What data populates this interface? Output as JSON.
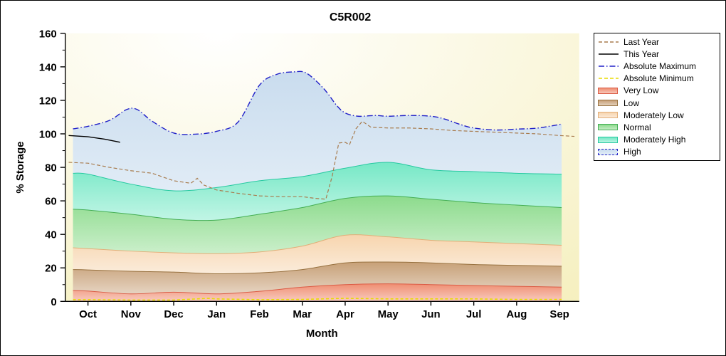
{
  "chart_data": {
    "type": "area",
    "title": "C5R002",
    "xlabel": "Month",
    "ylabel": "% Storage",
    "ylim": [
      0,
      160
    ],
    "yticks": [
      0,
      20,
      40,
      60,
      80,
      100,
      120,
      140,
      160
    ],
    "x_domain": [
      -0.53,
      11.46
    ],
    "grid": false,
    "months": [
      "Oct",
      "Nov",
      "Dec",
      "Jan",
      "Feb",
      "Mar",
      "Apr",
      "May",
      "Jun",
      "Jul",
      "Aug",
      "Sep"
    ],
    "band_order": [
      "very_low",
      "low",
      "moderately_low",
      "normal",
      "moderately_high"
    ],
    "bands": {
      "x": [
        -0.35,
        0,
        1,
        2,
        3,
        4,
        5,
        6,
        7,
        8,
        9,
        10,
        11.05
      ],
      "very_low_top": [
        6.5,
        6.2,
        4.5,
        5.5,
        4.5,
        6.0,
        8.5,
        10.0,
        10.5,
        10.0,
        9.5,
        9.0,
        8.5
      ],
      "low_top": [
        19.0,
        18.8,
        18.0,
        17.5,
        16.5,
        17.0,
        19.0,
        23.0,
        23.5,
        23.0,
        22.0,
        21.5,
        21.0
      ],
      "moderately_low_top": [
        32.0,
        31.5,
        30.0,
        29.0,
        28.5,
        29.5,
        33.0,
        39.5,
        38.5,
        36.5,
        35.5,
        34.5,
        33.5
      ],
      "normal_top": [
        55.0,
        54.5,
        52.0,
        49.0,
        48.5,
        52.0,
        56.0,
        61.5,
        63.0,
        61.0,
        59.0,
        57.5,
        56.0
      ],
      "moderately_high_top": [
        76.5,
        76.0,
        70.0,
        66.0,
        68.0,
        72.0,
        74.5,
        79.5,
        83.0,
        78.5,
        77.5,
        76.5,
        76.0
      ]
    },
    "absolute_maximum": {
      "x": [
        -0.35,
        0,
        0.5,
        0.9,
        1.15,
        1.5,
        2,
        2.5,
        3,
        3.5,
        4,
        4.4,
        4.8,
        5.1,
        5.5,
        5.8,
        6,
        6.3,
        6.7,
        7,
        7.5,
        8,
        8.3,
        8.7,
        9,
        9.5,
        10,
        10.5,
        11.05
      ],
      "y": [
        103,
        104.5,
        108,
        114.5,
        114.5,
        107.5,
        100.5,
        99.8,
        101.5,
        107,
        129,
        135.5,
        137,
        136.2,
        127,
        117,
        112.5,
        110.5,
        111,
        110.5,
        111,
        110.5,
        109,
        105.5,
        103.5,
        102.3,
        102.8,
        103.5,
        105.8
      ]
    },
    "absolute_minimum": {
      "x": [
        -0.35,
        0,
        1,
        2,
        2.8,
        3,
        4,
        5,
        6,
        7,
        8,
        9,
        10,
        11.05
      ],
      "y": [
        1,
        1,
        0.8,
        0.8,
        1.8,
        1.5,
        1,
        1.2,
        1.8,
        1.5,
        1.5,
        1.5,
        1.2,
        1.2
      ]
    },
    "last_year": {
      "x": [
        -0.45,
        0,
        0.5,
        1,
        1.5,
        2,
        2.4,
        2.55,
        2.7,
        3,
        3.5,
        4,
        4.5,
        5,
        5.3,
        5.55,
        5.7,
        5.85,
        6.0,
        6.1,
        6.25,
        6.4,
        6.6,
        7,
        7.5,
        8,
        8.5,
        9,
        9.5,
        10,
        10.5,
        11,
        11.35
      ],
      "y": [
        83,
        82.5,
        80,
        78,
        76.5,
        72,
        70.5,
        73.5,
        69.5,
        66.5,
        64.5,
        63,
        62.5,
        62.5,
        61.5,
        61,
        75,
        94.5,
        95,
        93.5,
        103,
        107.5,
        104,
        103.5,
        103.5,
        103,
        102,
        101.5,
        101,
        100.5,
        100,
        99,
        98.5
      ]
    },
    "this_year": {
      "x": [
        -0.45,
        0,
        0.4,
        0.75
      ],
      "y": [
        99,
        98.3,
        96.8,
        95
      ]
    },
    "colors": {
      "plot_bg_center": "#FFFFFF",
      "plot_bg_edge": "#F5EFBD",
      "very_low": {
        "fill": "#EF8E72",
        "line": "#DB5B45"
      },
      "low": {
        "fill": "#C7A077",
        "line": "#97713F"
      },
      "moderately_low": {
        "fill": "#F7D5AE",
        "line": "#E2AE78"
      },
      "normal": {
        "fill": "#8CDB8C",
        "line": "#44AE54"
      },
      "moderately_high": {
        "fill": "#76E8C6",
        "line": "#25C9A0"
      },
      "high": {
        "fill": "#C9DCEE",
        "line": "#2020C8"
      },
      "last_year": "#A87C4F",
      "this_year": "#000000",
      "abs_max": "#2020C8",
      "abs_min": "#E8DC00",
      "axis": "#000000"
    },
    "legend": {
      "position": "right",
      "items": [
        {
          "label": "Last Year",
          "marker": "line",
          "color": "#A87C4F",
          "dash": "dashed"
        },
        {
          "label": "This Year",
          "marker": "line",
          "color": "#000000",
          "dash": "solid"
        },
        {
          "label": "Absolute Maximum",
          "marker": "line",
          "color": "#2020C8",
          "dash": "dashdot"
        },
        {
          "label": "Absolute Minimum",
          "marker": "line",
          "color": "#E8DC00",
          "dash": "dashed"
        },
        {
          "label": "Very Low",
          "marker": "box",
          "fill": "#EF8E72",
          "border": "#DB5B45"
        },
        {
          "label": "Low",
          "marker": "box",
          "fill": "#C7A077",
          "border": "#97713F"
        },
        {
          "label": "Moderately Low",
          "marker": "box",
          "fill": "#F7D5AE",
          "border": "#E2AE78"
        },
        {
          "label": "Normal",
          "marker": "box",
          "fill": "#8CDB8C",
          "border": "#44AE54"
        },
        {
          "label": "Moderately High",
          "marker": "box",
          "fill": "#76E8C6",
          "border": "#25C9A0"
        },
        {
          "label": "High",
          "marker": "box",
          "fill": "#C9DCEE",
          "border": "#2020C8",
          "borderDash": "dashdot"
        }
      ]
    }
  }
}
